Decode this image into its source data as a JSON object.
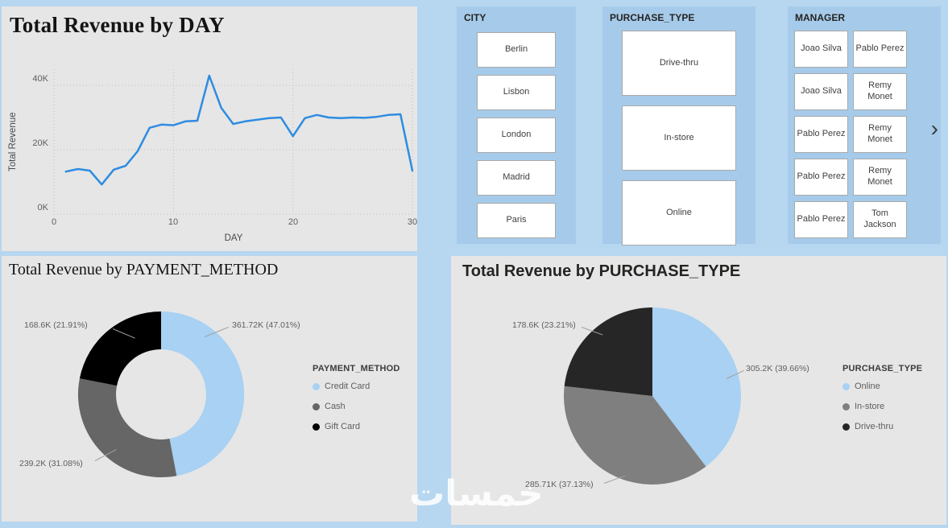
{
  "page": {
    "watermark": "خمسات"
  },
  "chart_data": [
    {
      "type": "line",
      "title": "Total Revenue by DAY",
      "xlabel": "DAY",
      "ylabel": "Total Revenue",
      "x": [
        1,
        2,
        3,
        4,
        5,
        6,
        7,
        8,
        9,
        10,
        11,
        12,
        13,
        14,
        15,
        16,
        17,
        18,
        19,
        20,
        21,
        22,
        23,
        24,
        25,
        26,
        27,
        28,
        29,
        30
      ],
      "values": [
        13.2,
        14,
        13.5,
        9.2,
        13.8,
        15,
        19.5,
        26.8,
        27.8,
        27.6,
        28.8,
        29,
        43,
        33,
        28,
        28.8,
        29.3,
        29.8,
        30,
        24.2,
        29.8,
        30.8,
        30,
        29.8,
        30,
        29.9,
        30.2,
        30.8,
        31,
        13.5
      ],
      "unit": "K",
      "xlim": [
        0,
        30
      ],
      "ylim": [
        0,
        45
      ],
      "x_ticks": [
        0,
        10,
        20,
        30
      ],
      "x_tick_labels": [
        "0",
        "10",
        "20",
        "30"
      ],
      "y_ticks": [
        0,
        20,
        40
      ],
      "y_tick_labels": [
        "0K",
        "20K",
        "40K"
      ],
      "color": "#2E8CE0",
      "grid": "dotted"
    },
    {
      "type": "pie",
      "variant": "donut",
      "title": "Total Revenue by PAYMENT_METHOD",
      "legend_title": "PAYMENT_METHOD",
      "legend_position": "right",
      "slices": [
        {
          "name": "Credit Card",
          "value": 361.72,
          "pct": 47.01,
          "label": "361.72K (47.01%)",
          "color": "#A8D1F3"
        },
        {
          "name": "Cash",
          "value": 239.2,
          "pct": 31.08,
          "label": "239.2K (31.08%)",
          "color": "#666666"
        },
        {
          "name": "Gift Card",
          "value": 168.6,
          "pct": 21.91,
          "label": "168.6K (21.91%)",
          "color": "#000000"
        }
      ]
    },
    {
      "type": "pie",
      "variant": "pie",
      "title": "Total Revenue by PURCHASE_TYPE",
      "legend_title": "PURCHASE_TYPE",
      "legend_position": "right",
      "slices": [
        {
          "name": "Online",
          "value": 305.2,
          "pct": 39.66,
          "label": "305.2K (39.66%)",
          "color": "#A8D1F3"
        },
        {
          "name": "In-store",
          "value": 285.71,
          "pct": 37.13,
          "label": "285.71K (37.13%)",
          "color": "#7F7F7F"
        },
        {
          "name": "Drive-thru",
          "value": 178.6,
          "pct": 23.21,
          "label": "178.6K (23.21%)",
          "color": "#262626"
        }
      ]
    }
  ],
  "slicers": {
    "city": {
      "header": "CITY",
      "items": [
        "Berlin",
        "Lisbon",
        "London",
        "Madrid",
        "Paris"
      ]
    },
    "purchase_type": {
      "header": "PURCHASE_TYPE",
      "items": [
        "Drive-thru",
        "In-store",
        "Online"
      ]
    },
    "manager": {
      "header": "MANAGER",
      "items": [
        "Joao Silva",
        "Pablo Perez",
        "Joao Silva",
        "Remy Monet",
        "Pablo Perez",
        "Remy Monet",
        "Pablo Perez",
        "Remy Monet",
        "Pablo Perez",
        "Tom Jackson"
      ],
      "nav_icon": "›"
    }
  }
}
